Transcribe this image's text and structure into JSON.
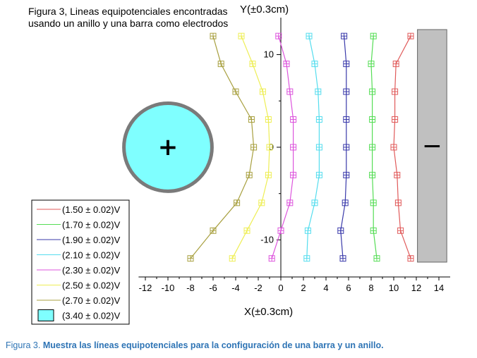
{
  "chart_data": {
    "type": "line",
    "title_lines": [
      "Figura 3, Lineas equipotenciales encontradas",
      "usando un anillo y una barra como electrodos"
    ],
    "xlabel": "X(±0.3cm)",
    "ylabel": "Y(±0.3cm)",
    "xlim": [
      -13,
      15
    ],
    "ylim": [
      -14,
      14.6
    ],
    "xticks": [
      -12,
      -10,
      -8,
      -6,
      -4,
      -2,
      0,
      2,
      4,
      6,
      8,
      10,
      12,
      14
    ],
    "yticks": [
      -10,
      0,
      10
    ],
    "grid": false,
    "legend_position": "bottom-left",
    "electrodes": {
      "ring": {
        "cx": -10,
        "cy": 0,
        "r": 3.9,
        "label": "+",
        "color": "#7FFFFF",
        "edge": "#7a7a7a"
      },
      "bar": {
        "x0": 12.1,
        "x1": 14.7,
        "y0": -12.4,
        "y1": 12.7,
        "label": "—",
        "color": "#c0c0c0"
      }
    },
    "series": [
      {
        "name": "(1.50 ± 0.02)V",
        "color": "#E05A5A",
        "points": [
          [
            11.5,
            12
          ],
          [
            10.2,
            9
          ],
          [
            10.1,
            6
          ],
          [
            10.1,
            3
          ],
          [
            10,
            0
          ],
          [
            10.3,
            -3
          ],
          [
            10.4,
            -6
          ],
          [
            10.6,
            -9
          ],
          [
            11.5,
            -12
          ]
        ]
      },
      {
        "name": "(1.70 ± 0.02)V",
        "color": "#55DD55",
        "points": [
          [
            8.2,
            12
          ],
          [
            8,
            9
          ],
          [
            8.1,
            6
          ],
          [
            8.1,
            3
          ],
          [
            8.1,
            0
          ],
          [
            8.1,
            -3
          ],
          [
            8.2,
            -6
          ],
          [
            8.2,
            -9
          ],
          [
            8.5,
            -12
          ]
        ]
      },
      {
        "name": "(1.90 ± 0.02)V",
        "color": "#3A3AAA",
        "points": [
          [
            5.6,
            12
          ],
          [
            5.8,
            9
          ],
          [
            5.8,
            6
          ],
          [
            5.8,
            3
          ],
          [
            5.8,
            0
          ],
          [
            5.8,
            -3
          ],
          [
            5.7,
            -6
          ],
          [
            5.3,
            -9
          ],
          [
            5.5,
            -12
          ]
        ]
      },
      {
        "name": "(2.10 ± 0.02)V",
        "color": "#55DDEE",
        "points": [
          [
            2.5,
            12
          ],
          [
            3,
            9
          ],
          [
            3.3,
            6
          ],
          [
            3.4,
            3
          ],
          [
            3.4,
            0
          ],
          [
            3.4,
            -3
          ],
          [
            3,
            -6
          ],
          [
            2.4,
            -9
          ],
          [
            2.3,
            -12
          ]
        ]
      },
      {
        "name": "(2.30 ± 0.02)V",
        "color": "#DD55DD",
        "points": [
          [
            -0.2,
            12
          ],
          [
            0.5,
            9
          ],
          [
            0.8,
            6
          ],
          [
            1.1,
            3
          ],
          [
            1.1,
            0
          ],
          [
            1.1,
            -3
          ],
          [
            0.8,
            -6
          ],
          [
            0,
            -9
          ],
          [
            -0.8,
            -12
          ]
        ]
      },
      {
        "name": "(2.50 ± 0.02)V",
        "color": "#EEEE55",
        "points": [
          [
            -3.5,
            12
          ],
          [
            -2.5,
            9
          ],
          [
            -1.6,
            6
          ],
          [
            -1.1,
            3
          ],
          [
            -1,
            0
          ],
          [
            -1.1,
            -3
          ],
          [
            -1.7,
            -6
          ],
          [
            -3,
            -9
          ],
          [
            -4.3,
            -12
          ]
        ]
      },
      {
        "name": "(2.70 ± 0.02)V",
        "color": "#A8A040",
        "points": [
          [
            -6,
            12
          ],
          [
            -5.3,
            9
          ],
          [
            -4,
            6
          ],
          [
            -2.6,
            3
          ],
          [
            -2.4,
            0
          ],
          [
            -2.8,
            -3
          ],
          [
            -3.9,
            -6
          ],
          [
            -6,
            -9
          ],
          [
            -8,
            -12
          ]
        ]
      }
    ],
    "legend_extra": {
      "name": "(3.40 ± 0.02)V",
      "color": "#7FFFFF"
    }
  },
  "caption": {
    "prefix": "Figura 3.",
    "text": "Muestra las líneas equipotenciales para la configuración de una barra y un anillo."
  }
}
